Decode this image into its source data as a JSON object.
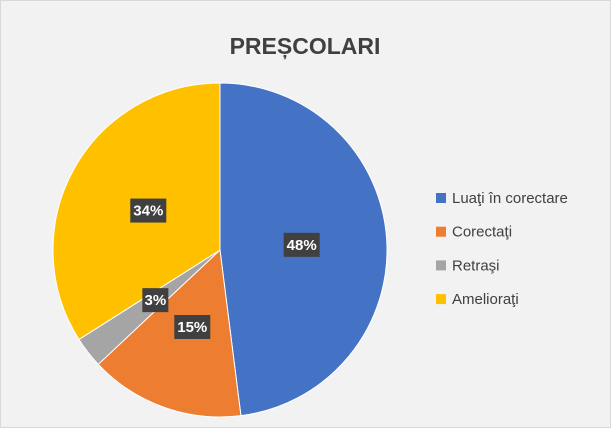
{
  "chart_data": {
    "type": "pie",
    "title": "PREȘCOLARI",
    "categories": [
      "Luaţi în corectare",
      "Corectaţi",
      "Retraşi",
      "Amelioraţi"
    ],
    "values": [
      48,
      15,
      3,
      34
    ],
    "value_labels": [
      "48%",
      "15%",
      "3%",
      "34%"
    ],
    "colors": [
      "#4472c4",
      "#ed7d31",
      "#a5a5a5",
      "#ffc000"
    ],
    "legend": "right"
  }
}
